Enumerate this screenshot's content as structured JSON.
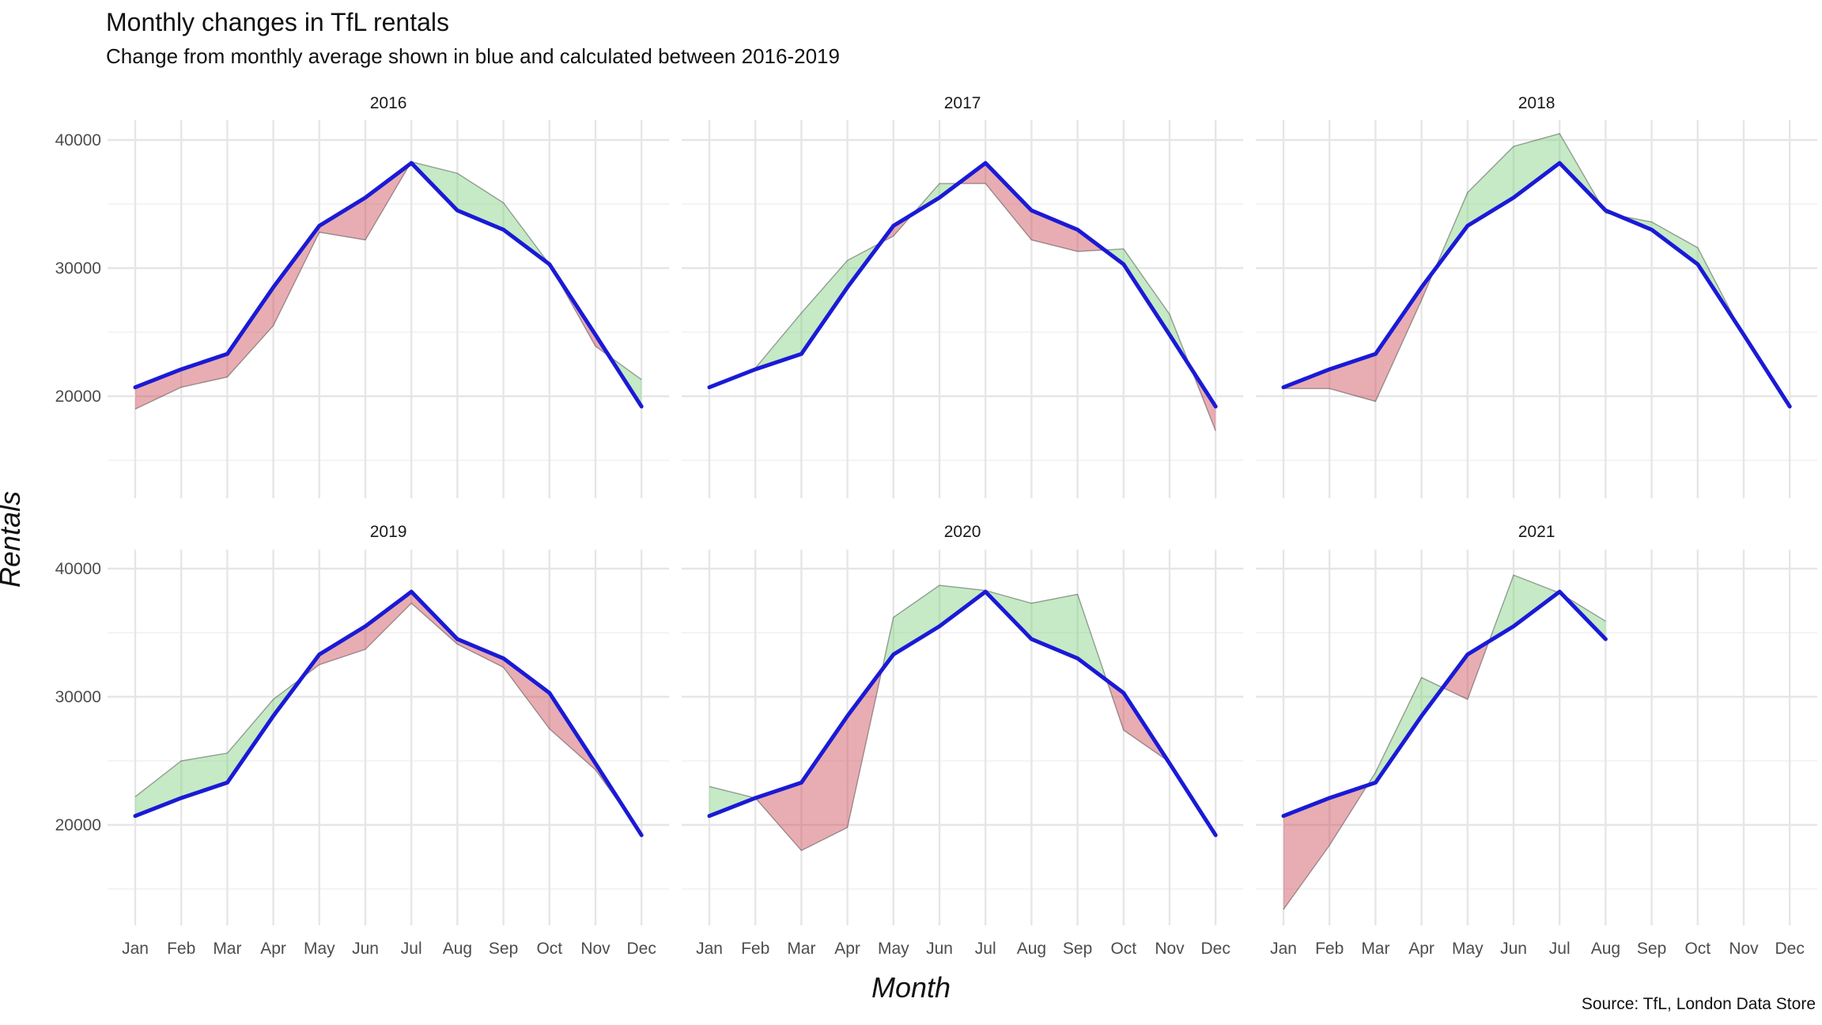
{
  "title": "Monthly changes in TfL rentals",
  "subtitle": "Change from monthly average shown in blue and calculated between 2016-2019",
  "xlabel": "Month",
  "ylabel": "Rentals",
  "caption": "Source: TfL, London Data Store",
  "colors": {
    "average_line": "#1a1ad6",
    "above_fill": "#7fd17f",
    "below_fill": "#cc4a55",
    "grid": "#e6e6e6"
  },
  "chart_data": {
    "type": "line",
    "facet_by": "year",
    "layout": "2 rows x 3 columns",
    "grid": true,
    "months": [
      "Jan",
      "Feb",
      "Mar",
      "Apr",
      "May",
      "Jun",
      "Jul",
      "Aug",
      "Sep",
      "Oct",
      "Nov",
      "Dec"
    ],
    "ylim": [
      12500,
      42000
    ],
    "y_ticks": [
      20000,
      30000,
      40000
    ],
    "monthly_average": [
      20700,
      22100,
      23300,
      28500,
      33300,
      35500,
      38200,
      34500,
      33000,
      30300,
      24800,
      19200
    ],
    "panels": [
      {
        "year": "2016",
        "values": [
          19000,
          20700,
          21500,
          25500,
          32800,
          32200,
          38300,
          37400,
          35100,
          30300,
          23900,
          21300
        ]
      },
      {
        "year": "2017",
        "values": [
          20600,
          22200,
          26500,
          30600,
          32500,
          36600,
          36600,
          32200,
          31300,
          31500,
          26400,
          17300
        ]
      },
      {
        "year": "2018",
        "values": [
          20600,
          20600,
          19600,
          27500,
          35900,
          39500,
          40500,
          34300,
          33600,
          31600,
          24700,
          19100
        ]
      },
      {
        "year": "2019",
        "values": [
          22200,
          25000,
          25600,
          29800,
          32500,
          33700,
          37300,
          34100,
          32300,
          27500,
          24300,
          19300
        ]
      },
      {
        "year": "2020",
        "values": [
          23000,
          22100,
          18000,
          19800,
          36200,
          38700,
          38300,
          37300,
          38000,
          27400,
          24900,
          19300
        ]
      },
      {
        "year": "2021",
        "values": [
          13400,
          18400,
          24100,
          31500,
          29800,
          39500,
          38100,
          35900
        ]
      }
    ]
  }
}
